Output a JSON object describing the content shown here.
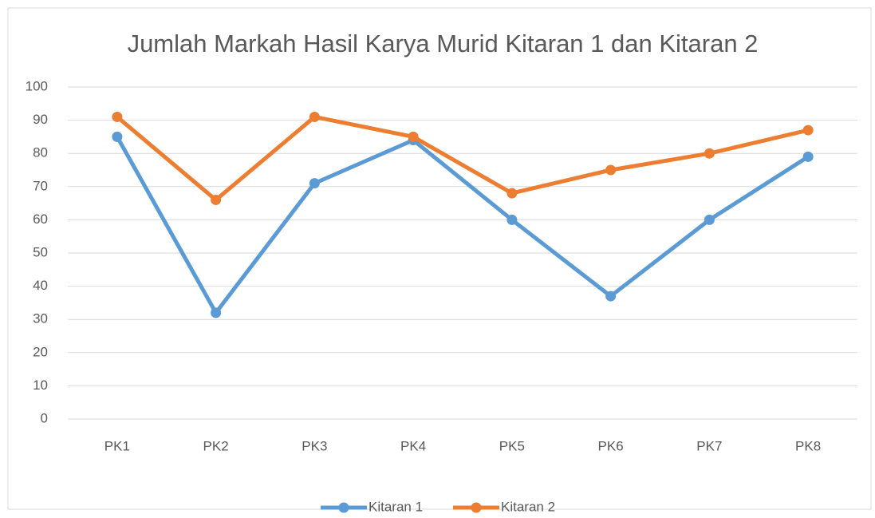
{
  "chart_data": {
    "type": "line",
    "title": "Jumlah Markah Hasil Karya Murid Kitaran 1 dan Kitaran 2",
    "categories": [
      "PK1",
      "PK2",
      "PK3",
      "PK4",
      "PK5",
      "PK6",
      "PK7",
      "PK8"
    ],
    "series": [
      {
        "name": "Kitaran 1",
        "color": "#5b9bd5",
        "values": [
          85,
          32,
          71,
          84,
          60,
          37,
          60,
          79
        ]
      },
      {
        "name": "Kitaran 2",
        "color": "#ed7d31",
        "values": [
          91,
          66,
          91,
          85,
          68,
          75,
          80,
          87
        ]
      }
    ],
    "ylim": [
      0,
      100
    ],
    "yticks": [
      0,
      10,
      20,
      30,
      40,
      50,
      60,
      70,
      80,
      90,
      100
    ],
    "grid": true,
    "legend": "bottom"
  }
}
